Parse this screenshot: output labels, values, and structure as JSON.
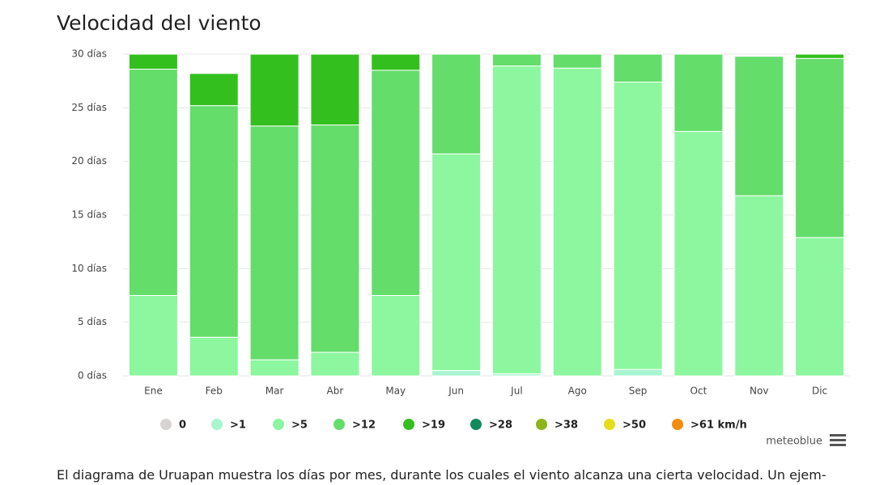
{
  "chart_data": {
    "type": "bar",
    "stacked": true,
    "title": "Velocidad del viento",
    "categories": [
      "Ene",
      "Feb",
      "Mar",
      "Abr",
      "May",
      "Jun",
      "Jul",
      "Ago",
      "Sep",
      "Oct",
      "Nov",
      "Dic"
    ],
    "ylim": [
      0,
      30
    ],
    "yticks": [
      {
        "value": 0,
        "label": "0 días"
      },
      {
        "value": 5,
        "label": "5 días"
      },
      {
        "value": 10,
        "label": "10 días"
      },
      {
        "value": 15,
        "label": "15 días"
      },
      {
        "value": 20,
        "label": "20 días"
      },
      {
        "value": 25,
        "label": "25 días"
      },
      {
        "value": 30,
        "label": "30 días"
      }
    ],
    "grid": true,
    "series": [
      {
        "name": "0",
        "color": "#d8d3d3",
        "values": [
          0,
          0,
          0,
          0,
          0,
          0,
          0,
          0,
          0,
          0,
          0,
          0
        ]
      },
      {
        "name": ">1",
        "color": "#a8f5d0",
        "values": [
          0,
          0,
          0,
          0,
          0,
          0.5,
          0.2,
          0,
          0.6,
          0,
          0,
          0
        ]
      },
      {
        "name": ">5",
        "color": "#8cf79e",
        "values": [
          7.5,
          3.6,
          1.5,
          2.2,
          7.5,
          20.2,
          28.7,
          28.7,
          26.8,
          22.8,
          16.8,
          12.9
        ]
      },
      {
        "name": ">12",
        "color": "#64dd6b",
        "values": [
          21.1,
          21.6,
          21.8,
          21.2,
          21.0,
          9.3,
          1.1,
          1.3,
          2.6,
          7.2,
          13.0,
          16.7
        ]
      },
      {
        "name": ">19",
        "color": "#33c01f",
        "values": [
          1.4,
          3.0,
          6.7,
          6.6,
          1.5,
          0,
          0,
          0,
          0,
          0,
          0,
          0.4
        ]
      },
      {
        "name": ">28",
        "color": "#128a5e",
        "values": [
          0,
          0,
          0,
          0,
          0,
          0,
          0,
          0,
          0,
          0,
          0,
          0
        ]
      },
      {
        "name": ">38",
        "color": "#8db51b",
        "values": [
          0,
          0,
          0,
          0,
          0,
          0,
          0,
          0,
          0,
          0,
          0,
          0
        ]
      },
      {
        "name": ">50",
        "color": "#e5dc1d",
        "values": [
          0,
          0,
          0,
          0,
          0,
          0,
          0,
          0,
          0,
          0,
          0,
          0
        ]
      },
      {
        "name": ">61 km/h",
        "color": "#f28c10",
        "values": [
          0,
          0,
          0,
          0,
          0,
          0,
          0,
          0,
          0,
          0,
          0,
          0
        ]
      }
    ],
    "credit": "meteoblue"
  },
  "description": "El diagrama de Uruapan muestra los días por mes, durante los cuales el viento alcanza una cierta velocidad. Un ejem-"
}
